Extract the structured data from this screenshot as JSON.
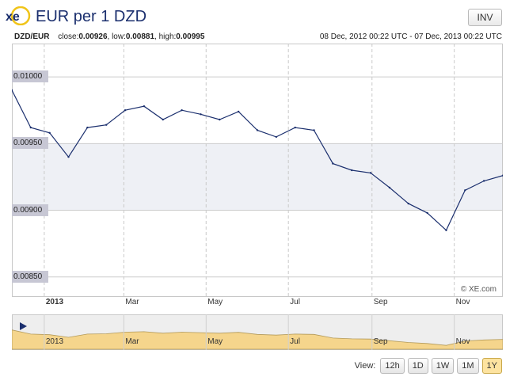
{
  "header": {
    "logo_text": "xe",
    "title": "EUR per 1 DZD",
    "inv_label": "INV"
  },
  "info": {
    "pair": "DZD/EUR",
    "close_label": "close:",
    "close": "0.00926",
    "low_label": "low:",
    "low": "0.00881",
    "high_label": "high:",
    "high": "0.00995",
    "range": "08 Dec, 2012 00:22 UTC - 07 Dec, 2013 00:22 UTC"
  },
  "credit": "© XE.com",
  "view": {
    "label": "View:",
    "buttons": [
      "12h",
      "1D",
      "1W",
      "1M",
      "1Y"
    ],
    "active": "1Y"
  },
  "colors": {
    "line": "#1b2f6e",
    "navigator_fill": "#f5d58c",
    "tick_bg": "#c7c7d4",
    "brand": "#1b2f6e"
  },
  "chart_data": {
    "type": "line",
    "title": "EUR per 1 DZD",
    "ylim": [
      0.00835,
      0.01025
    ],
    "yticks": [
      "0.01000",
      "0.00950",
      "0.00900",
      "0.00850"
    ],
    "xticks": [
      "2013",
      "Mar",
      "May",
      "Jul",
      "Sep",
      "Nov"
    ],
    "navigator_xticks": [
      "2013",
      "Mar",
      "May",
      "Jul",
      "Sep",
      "Nov"
    ],
    "grid": true,
    "x": [
      "2012-12-08",
      "2012-12-22",
      "2013-01-05",
      "2013-01-19",
      "2013-02-02",
      "2013-02-16",
      "2013-03-02",
      "2013-03-16",
      "2013-03-30",
      "2013-04-13",
      "2013-04-27",
      "2013-05-11",
      "2013-05-25",
      "2013-06-08",
      "2013-06-22",
      "2013-07-06",
      "2013-07-20",
      "2013-08-03",
      "2013-08-17",
      "2013-08-31",
      "2013-09-14",
      "2013-09-28",
      "2013-10-12",
      "2013-10-26",
      "2013-11-09",
      "2013-11-23",
      "2013-12-07"
    ],
    "series": [
      {
        "values": [
          0.0099,
          0.00962,
          0.00958,
          0.0094,
          0.00962,
          0.00964,
          0.00975,
          0.00978,
          0.00968,
          0.00975,
          0.00972,
          0.00968,
          0.00974,
          0.0096,
          0.00955,
          0.00962,
          0.0096,
          0.00935,
          0.0093,
          0.00928,
          0.00917,
          0.00905,
          0.00898,
          0.00885,
          0.00915,
          0.00922,
          0.00926
        ]
      }
    ]
  }
}
